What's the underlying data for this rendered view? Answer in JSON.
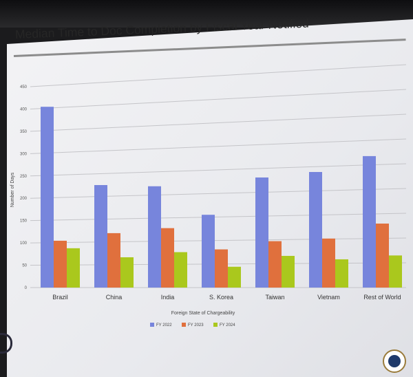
{
  "chart_data": {
    "type": "bar",
    "title": "Median Time to Doc Completion by Fiscal Year Notified",
    "xlabel": "Foreign State of Chargeability",
    "ylabel": "Number of Days",
    "ylim": [
      0,
      450
    ],
    "yticks": [
      "0",
      "50",
      "100",
      "150",
      "200",
      "250",
      "300",
      "350",
      "400",
      "450"
    ],
    "grid": true,
    "legend_position": "bottom",
    "categories": [
      "Brazil",
      "China",
      "India",
      "S. Korea",
      "Taiwan",
      "Vietnam",
      "Rest of World"
    ],
    "series": [
      {
        "name": "FY 2022",
        "color": "#7785dc",
        "values": [
          403,
          225,
          219,
          155,
          231,
          239,
          268
        ]
      },
      {
        "name": "FY 2023",
        "color": "#e0703d",
        "values": [
          104,
          119,
          128,
          81,
          97,
          101,
          130
        ]
      },
      {
        "name": "FY 2024",
        "color": "#aac81d",
        "values": [
          87,
          66,
          76,
          44,
          66,
          58,
          65
        ]
      }
    ]
  }
}
